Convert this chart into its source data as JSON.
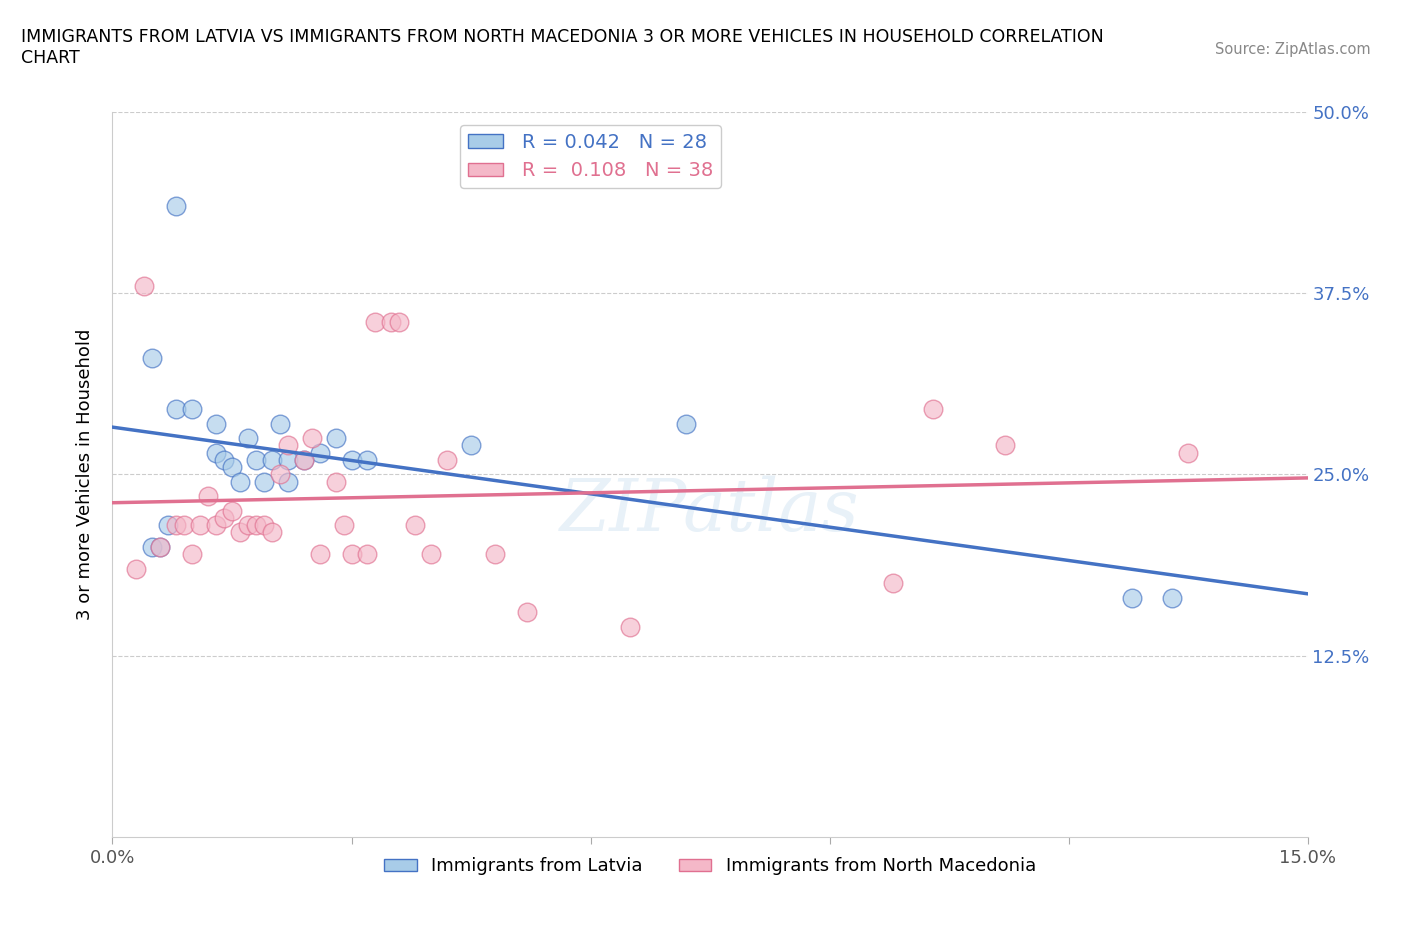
{
  "title": "IMMIGRANTS FROM LATVIA VS IMMIGRANTS FROM NORTH MACEDONIA 3 OR MORE VEHICLES IN HOUSEHOLD CORRELATION\nCHART",
  "source_text": "Source: ZipAtlas.com",
  "ylabel": "3 or more Vehicles in Household",
  "xlim": [
    0.0,
    0.15
  ],
  "ylim": [
    0.0,
    0.5
  ],
  "xticks": [
    0.0,
    0.03,
    0.06,
    0.09,
    0.12,
    0.15
  ],
  "xticklabels": [
    "0.0%",
    "",
    "",
    "",
    "",
    "15.0%"
  ],
  "yticks": [
    0.0,
    0.125,
    0.25,
    0.375,
    0.5
  ],
  "latvia_scatter_color": "#a8cce8",
  "north_mac_scatter_color": "#f4b8c8",
  "trend_latvia_color": "#4472C4",
  "trend_north_mac_color": "#e07090",
  "R_latvia": 0.042,
  "N_latvia": 28,
  "R_north_mac": 0.108,
  "N_north_mac": 38,
  "latvia_x": [
    0.008,
    0.005,
    0.008,
    0.01,
    0.013,
    0.013,
    0.014,
    0.015,
    0.016,
    0.017,
    0.018,
    0.019,
    0.02,
    0.021,
    0.022,
    0.022,
    0.024,
    0.026,
    0.028,
    0.03,
    0.032,
    0.045,
    0.005,
    0.006,
    0.007,
    0.072,
    0.128,
    0.133
  ],
  "latvia_y": [
    0.435,
    0.33,
    0.295,
    0.295,
    0.285,
    0.265,
    0.26,
    0.255,
    0.245,
    0.275,
    0.26,
    0.245,
    0.26,
    0.285,
    0.245,
    0.26,
    0.26,
    0.265,
    0.275,
    0.26,
    0.26,
    0.27,
    0.2,
    0.2,
    0.215,
    0.285,
    0.165,
    0.165
  ],
  "north_mac_x": [
    0.003,
    0.004,
    0.006,
    0.008,
    0.009,
    0.01,
    0.011,
    0.012,
    0.013,
    0.014,
    0.015,
    0.016,
    0.017,
    0.018,
    0.019,
    0.02,
    0.021,
    0.022,
    0.024,
    0.025,
    0.026,
    0.028,
    0.029,
    0.03,
    0.032,
    0.033,
    0.035,
    0.036,
    0.038,
    0.04,
    0.042,
    0.048,
    0.052,
    0.065,
    0.098,
    0.103,
    0.112,
    0.135
  ],
  "north_mac_y": [
    0.185,
    0.38,
    0.2,
    0.215,
    0.215,
    0.195,
    0.215,
    0.235,
    0.215,
    0.22,
    0.225,
    0.21,
    0.215,
    0.215,
    0.215,
    0.21,
    0.25,
    0.27,
    0.26,
    0.275,
    0.195,
    0.245,
    0.215,
    0.195,
    0.195,
    0.355,
    0.355,
    0.355,
    0.215,
    0.195,
    0.26,
    0.195,
    0.155,
    0.145,
    0.175,
    0.295,
    0.27,
    0.265
  ]
}
